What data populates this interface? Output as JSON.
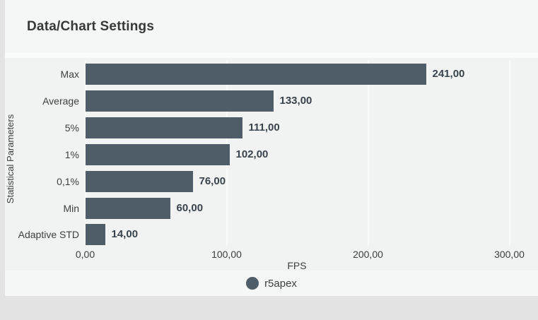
{
  "page": {
    "title": "Data/Chart Settings"
  },
  "colors": {
    "page_bg": "#e3e3e3",
    "card_bg": "#f5f6f6",
    "plot_bg": "#f1f2f2",
    "bar": "#4e5d67",
    "gridline": "#f9fafa",
    "value_text": "#39434b",
    "label_text": "#3e3e3e",
    "title_text": "#383838"
  },
  "chart_data": {
    "type": "bar",
    "orientation": "horizontal",
    "title": "Data/Chart Settings",
    "categories": [
      "Max",
      "Average",
      "5%",
      "1%",
      "0,1%",
      "Min",
      "Adaptive STD"
    ],
    "values": [
      241,
      133,
      111,
      102,
      76,
      60,
      14
    ],
    "value_labels": [
      "241,00",
      "133,00",
      "111,00",
      "102,00",
      "76,00",
      "60,00",
      "14,00"
    ],
    "series": [
      {
        "name": "r5apex",
        "values": [
          241,
          133,
          111,
          102,
          76,
          60,
          14
        ],
        "color": "#4e5d67"
      }
    ],
    "xlabel": "FPS",
    "ylabel": "Statistical Parameters",
    "x_ticks": [
      "0,00",
      "100,00",
      "200,00",
      "300,00"
    ],
    "x_tick_values": [
      0,
      100,
      200,
      300
    ],
    "xlim": [
      0,
      300
    ],
    "grid": true,
    "legend_position": "bottom-center",
    "legend": [
      {
        "label": "r5apex",
        "marker": "circle",
        "color": "#4e5d67"
      }
    ]
  }
}
